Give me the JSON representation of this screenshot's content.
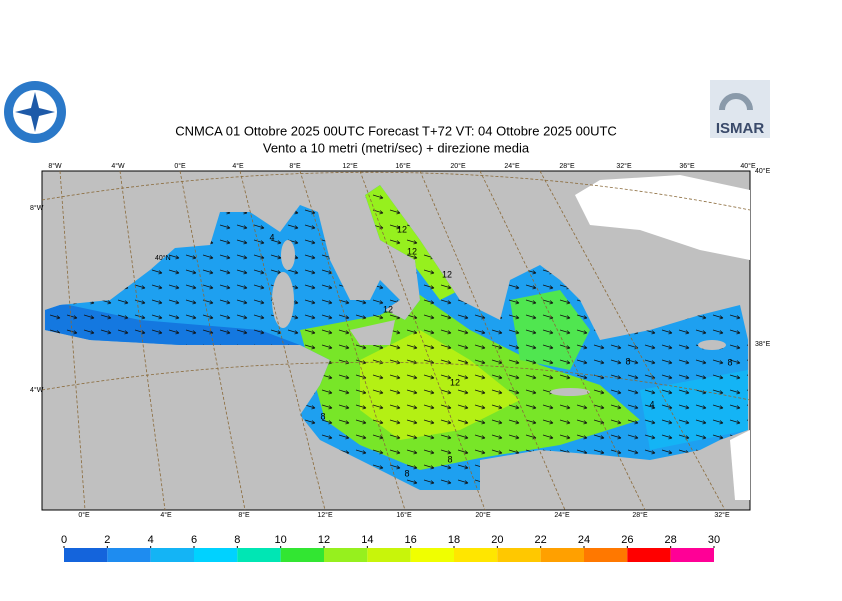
{
  "header": {
    "title": "CNMCA 01  Ottobre  2025 00UTC Forecast T+72 VT: 04  Ottobre  2025 00UTC",
    "subtitle": "Vento a 10 metri (metri/sec) + direzione media",
    "logo_right": "ISMAR"
  },
  "map": {
    "top_labels": [
      "8°W",
      "4°W",
      "0°E",
      "4°E",
      "8°E",
      "12°E",
      "16°E",
      "20°E",
      "24°E",
      "28°E",
      "32°E",
      "36°E",
      "40°E"
    ],
    "bottom_labels": [
      "0°E",
      "4°E",
      "8°E",
      "12°E",
      "16°E",
      "20°E",
      "24°E",
      "28°E",
      "32°E"
    ],
    "left_labels": [
      "8°W",
      "40°N",
      "4°W"
    ],
    "right_labels": [
      "40°E",
      "38°E"
    ],
    "contour_labels": [
      "4",
      "12",
      "12",
      "12",
      "12",
      "8",
      "12",
      "8",
      "8",
      "4",
      "8",
      "8"
    ]
  },
  "colorbar": {
    "ticks": [
      0,
      2,
      4,
      6,
      8,
      10,
      12,
      14,
      16,
      18,
      20,
      22,
      24,
      26,
      28,
      30
    ],
    "colors": [
      "#1464dc",
      "#1e8cf0",
      "#14b4f5",
      "#00d2ff",
      "#00e6b4",
      "#32e632",
      "#96f01e",
      "#c8f50a",
      "#f0ff00",
      "#ffe600",
      "#ffc800",
      "#ffa000",
      "#ff7800",
      "#ff0000",
      "#ff0096"
    ]
  }
}
